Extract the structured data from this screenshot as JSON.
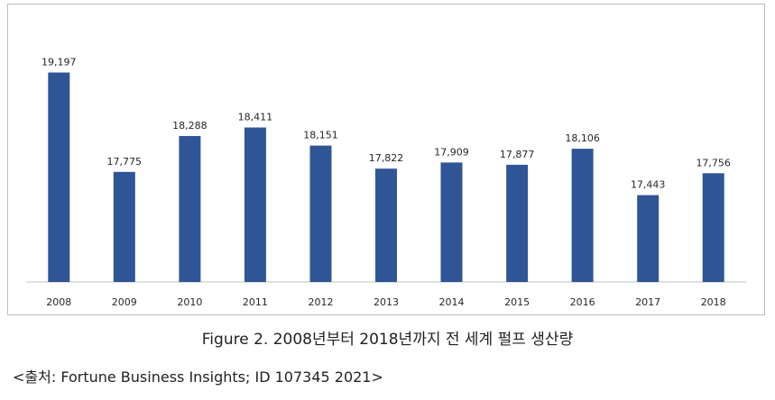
{
  "chart_data": {
    "type": "bar",
    "categories": [
      "2008",
      "2009",
      "2010",
      "2011",
      "2012",
      "2013",
      "2014",
      "2015",
      "2016",
      "2017",
      "2018"
    ],
    "values": [
      19197,
      17775,
      18288,
      18411,
      18151,
      17822,
      17909,
      17877,
      18106,
      17443,
      17756
    ],
    "value_labels": [
      "19,197",
      "17,775",
      "18,288",
      "18,411",
      "18,151",
      "17,822",
      "17,909",
      "17,877",
      "18,106",
      "17,443",
      "17,756"
    ],
    "ylim": [
      16200,
      19500
    ],
    "grid": false,
    "colors": {
      "bar": "#2f5597"
    }
  },
  "caption": "Figure 2. 2008년부터 2018년까지 전 세계 펄프 생산량",
  "source": "<출처: Fortune Business Insights; ID 107345 2021>"
}
